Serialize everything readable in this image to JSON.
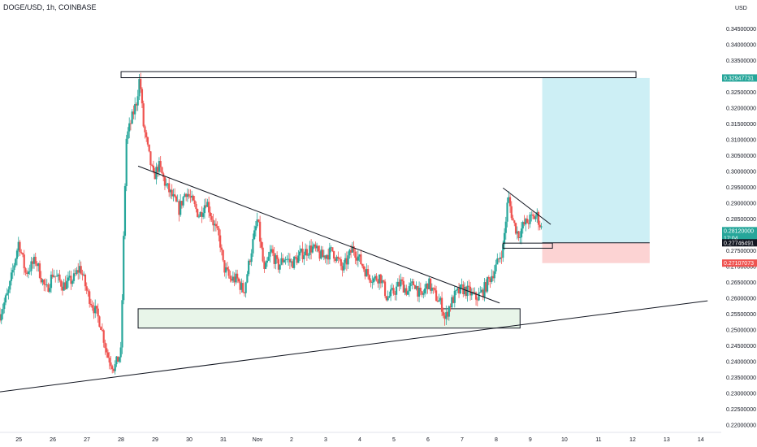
{
  "header": {
    "symbol": "DOGE/USD, 1h, COINBASE",
    "currency": "USD"
  },
  "colors": {
    "up": "#26a69a",
    "down": "#ef5350",
    "target_zone": "#cdeff5",
    "stop_zone": "#fcd3d3",
    "demand_zone": "#e8f5e9"
  },
  "chart_data": {
    "type": "candlestick",
    "y_ticks": [
      0.22,
      0.225,
      0.23,
      0.235,
      0.24,
      0.245,
      0.25,
      0.255,
      0.26,
      0.265,
      0.27,
      0.275,
      0.28,
      0.285,
      0.29,
      0.295,
      0.3,
      0.305,
      0.31,
      0.315,
      0.32,
      0.325,
      0.33,
      0.335,
      0.34,
      0.345
    ],
    "y_tick_labels": [
      "0.22000000",
      "0.22500000",
      "0.23000000",
      "0.23500000",
      "0.24000000",
      "0.24500000",
      "0.25000000",
      "0.25500000",
      "0.26000000",
      "0.26500000",
      "0.27000000",
      "0.27500000",
      "0.28000000",
      "0.28500000",
      "0.29000000",
      "0.29500000",
      "0.30000000",
      "0.30500000",
      "0.31000000",
      "0.31500000",
      "0.32000000",
      "0.32500000",
      "0.33000000",
      "0.33500000",
      "0.34000000",
      "0.34500000"
    ],
    "ylim": [
      0.2177,
      0.3541
    ],
    "x_ticks": [
      {
        "label": "25",
        "x": 0
      },
      {
        "label": "26",
        "x": 1
      },
      {
        "label": "27",
        "x": 2
      },
      {
        "label": "28",
        "x": 3
      },
      {
        "label": "29",
        "x": 4
      },
      {
        "label": "30",
        "x": 5
      },
      {
        "label": "31",
        "x": 6
      },
      {
        "label": "Nov",
        "x": 7
      },
      {
        "label": "2",
        "x": 8
      },
      {
        "label": "3",
        "x": 9
      },
      {
        "label": "4",
        "x": 10
      },
      {
        "label": "5",
        "x": 11
      },
      {
        "label": "6",
        "x": 12
      },
      {
        "label": "7",
        "x": 13
      },
      {
        "label": "8",
        "x": 14
      },
      {
        "label": "9",
        "x": 15
      },
      {
        "label": "10",
        "x": 16
      },
      {
        "label": "11",
        "x": 17
      },
      {
        "label": "12",
        "x": 18
      },
      {
        "label": "13",
        "x": 19
      },
      {
        "label": "14",
        "x": 20
      }
    ],
    "xlim": [
      -0.55,
      20.6
    ],
    "price_path": [
      [
        -0.55,
        0.255
      ],
      [
        -0.3,
        0.262
      ],
      [
        0.0,
        0.278
      ],
      [
        0.2,
        0.268
      ],
      [
        0.5,
        0.272
      ],
      [
        0.8,
        0.262
      ],
      [
        1.0,
        0.268
      ],
      [
        1.3,
        0.264
      ],
      [
        1.6,
        0.266
      ],
      [
        1.8,
        0.27
      ],
      [
        2.0,
        0.262
      ],
      [
        2.2,
        0.257
      ],
      [
        2.4,
        0.252
      ],
      [
        2.6,
        0.242
      ],
      [
        2.8,
        0.238
      ],
      [
        3.0,
        0.243
      ],
      [
        3.05,
        0.268
      ],
      [
        3.15,
        0.31
      ],
      [
        3.3,
        0.316
      ],
      [
        3.45,
        0.322
      ],
      [
        3.55,
        0.33
      ],
      [
        3.65,
        0.315
      ],
      [
        3.8,
        0.306
      ],
      [
        3.95,
        0.298
      ],
      [
        4.1,
        0.302
      ],
      [
        4.3,
        0.296
      ],
      [
        4.5,
        0.292
      ],
      [
        4.7,
        0.288
      ],
      [
        4.9,
        0.294
      ],
      [
        5.1,
        0.29
      ],
      [
        5.3,
        0.286
      ],
      [
        5.5,
        0.291
      ],
      [
        5.7,
        0.284
      ],
      [
        5.9,
        0.278
      ],
      [
        6.0,
        0.27
      ],
      [
        6.2,
        0.266
      ],
      [
        6.4,
        0.266
      ],
      [
        6.6,
        0.262
      ],
      [
        6.8,
        0.274
      ],
      [
        7.0,
        0.285
      ],
      [
        7.2,
        0.268
      ],
      [
        7.4,
        0.275
      ],
      [
        7.6,
        0.27
      ],
      [
        7.8,
        0.273
      ],
      [
        8.0,
        0.271
      ],
      [
        8.3,
        0.274
      ],
      [
        8.6,
        0.276
      ],
      [
        8.9,
        0.273
      ],
      [
        9.2,
        0.275
      ],
      [
        9.5,
        0.269
      ],
      [
        9.8,
        0.276
      ],
      [
        10.0,
        0.272
      ],
      [
        10.2,
        0.268
      ],
      [
        10.4,
        0.266
      ],
      [
        10.6,
        0.267
      ],
      [
        10.8,
        0.26
      ],
      [
        11.0,
        0.262
      ],
      [
        11.2,
        0.265
      ],
      [
        11.4,
        0.262
      ],
      [
        11.6,
        0.265
      ],
      [
        11.8,
        0.26
      ],
      [
        12.0,
        0.265
      ],
      [
        12.2,
        0.261
      ],
      [
        12.4,
        0.258
      ],
      [
        12.5,
        0.253
      ],
      [
        12.6,
        0.257
      ],
      [
        12.8,
        0.261
      ],
      [
        13.0,
        0.263
      ],
      [
        13.2,
        0.262
      ],
      [
        13.4,
        0.26
      ],
      [
        13.6,
        0.262
      ],
      [
        13.8,
        0.266
      ],
      [
        14.0,
        0.27
      ],
      [
        14.2,
        0.276
      ],
      [
        14.35,
        0.292
      ],
      [
        14.5,
        0.284
      ],
      [
        14.65,
        0.28
      ],
      [
        14.8,
        0.283
      ],
      [
        15.0,
        0.285
      ],
      [
        15.2,
        0.286
      ],
      [
        15.35,
        0.2812
      ]
    ],
    "drawings": {
      "resistance_box": {
        "x0": 3.0,
        "x1": 18.1,
        "y0": 0.3296,
        "y1": 0.3315
      },
      "demand_box": {
        "x0": 3.5,
        "x1": 14.7,
        "y0": 0.2506,
        "y1": 0.2567
      },
      "entry_box": {
        "x0": 14.2,
        "x1": 15.65,
        "y0": 0.2758,
        "y1": 0.2774
      },
      "target_zone": {
        "x0": 15.35,
        "x1": 18.5,
        "y0": 0.2775,
        "y1": 0.3295
      },
      "stop_zone": {
        "x0": 15.35,
        "x1": 18.5,
        "y0": 0.2711,
        "y1": 0.2775
      },
      "descending_trendline": [
        [
          3.5,
          0.3017
        ],
        [
          14.1,
          0.2585
        ]
      ],
      "rising_support": [
        [
          -0.55,
          0.2305
        ],
        [
          20.2,
          0.2592
        ]
      ],
      "flag_line": [
        [
          14.2,
          0.2948
        ],
        [
          15.6,
          0.2833
        ]
      ]
    },
    "price_tags": [
      {
        "label": "0.32947731",
        "value": 0.3295,
        "bg": "#26a69a",
        "fg": "#ffffff"
      },
      {
        "label": "0.28120000",
        "sub": "17:04",
        "value": 0.2812,
        "bg": "#26a69a",
        "fg": "#ffffff"
      },
      {
        "label": "0.27746491",
        "value": 0.2775,
        "bg": "#131722",
        "fg": "#ffffff"
      },
      {
        "label": "0.27107073",
        "value": 0.2711,
        "bg": "#ef5350",
        "fg": "#ffffff"
      }
    ]
  }
}
